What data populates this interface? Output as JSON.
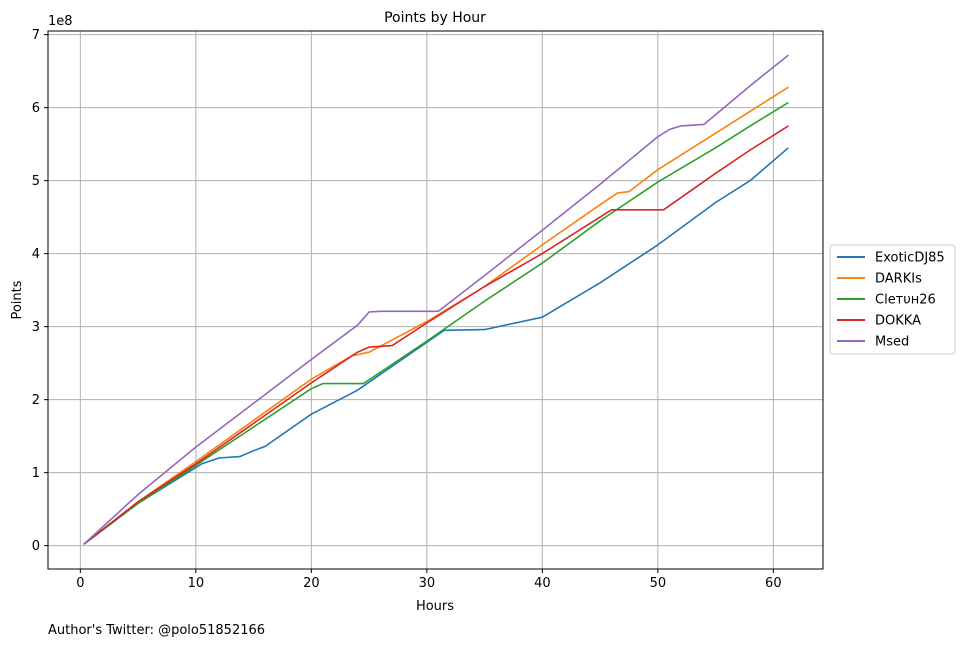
{
  "chart_data": {
    "type": "line",
    "title": "Points by Hour",
    "xlabel": "Hours",
    "ylabel": "Points",
    "y_offset_label": "1e8",
    "xlim": [
      -2.8,
      64.3
    ],
    "ylim": [
      -0.32,
      7.05
    ],
    "xticks": [
      0,
      10,
      20,
      30,
      40,
      50,
      60
    ],
    "yticks": [
      0,
      1,
      2,
      3,
      4,
      5,
      6,
      7
    ],
    "grid": true,
    "legend_position": "center-right-outside",
    "footnote": "Author's Twitter: @polo51852166",
    "series": [
      {
        "name": "ExoticDJ85",
        "color": "#1f77b4",
        "points": [
          [
            0.3,
            0.02
          ],
          [
            5,
            0.58
          ],
          [
            10.5,
            1.12
          ],
          [
            12,
            1.2
          ],
          [
            13.8,
            1.22
          ],
          [
            15,
            1.3
          ],
          [
            16,
            1.36
          ],
          [
            20,
            1.8
          ],
          [
            24,
            2.13
          ],
          [
            31.5,
            2.95
          ],
          [
            35,
            2.96
          ],
          [
            40,
            3.13
          ],
          [
            45,
            3.6
          ],
          [
            50,
            4.12
          ],
          [
            55,
            4.7
          ],
          [
            58,
            5.0
          ],
          [
            61.3,
            5.45
          ]
        ]
      },
      {
        "name": "DARKIs",
        "color": "#ff7f0e",
        "points": [
          [
            0.3,
            0.02
          ],
          [
            5,
            0.6
          ],
          [
            10,
            1.15
          ],
          [
            20,
            2.28
          ],
          [
            23.5,
            2.6
          ],
          [
            25,
            2.65
          ],
          [
            30,
            3.07
          ],
          [
            35,
            3.55
          ],
          [
            40,
            4.12
          ],
          [
            45,
            4.67
          ],
          [
            46.5,
            4.83
          ],
          [
            47.5,
            4.85
          ],
          [
            50,
            5.15
          ],
          [
            55,
            5.65
          ],
          [
            58,
            5.95
          ],
          [
            61.3,
            6.28
          ]
        ]
      },
      {
        "name": "Clетυн26",
        "color": "#2ca02c",
        "points": [
          [
            0.3,
            0.02
          ],
          [
            5,
            0.58
          ],
          [
            10,
            1.1
          ],
          [
            20,
            2.15
          ],
          [
            21,
            2.22
          ],
          [
            24.5,
            2.22
          ],
          [
            30,
            2.8
          ],
          [
            35,
            3.35
          ],
          [
            40,
            3.87
          ],
          [
            45,
            4.45
          ],
          [
            50,
            4.98
          ],
          [
            55,
            5.45
          ],
          [
            58,
            5.75
          ],
          [
            61.3,
            6.07
          ]
        ]
      },
      {
        "name": "DOKKA",
        "color": "#d62728",
        "points": [
          [
            0.3,
            0.02
          ],
          [
            5,
            0.6
          ],
          [
            10,
            1.12
          ],
          [
            20,
            2.23
          ],
          [
            24,
            2.65
          ],
          [
            25,
            2.72
          ],
          [
            27,
            2.74
          ],
          [
            30,
            3.05
          ],
          [
            35,
            3.55
          ],
          [
            40,
            4.0
          ],
          [
            45,
            4.5
          ],
          [
            46,
            4.6
          ],
          [
            50.5,
            4.6
          ],
          [
            55,
            5.1
          ],
          [
            58,
            5.42
          ],
          [
            61.3,
            5.75
          ]
        ]
      },
      {
        "name": "Msed",
        "color": "#9467bd",
        "points": [
          [
            0.3,
            0.02
          ],
          [
            5,
            0.7
          ],
          [
            10,
            1.35
          ],
          [
            20,
            2.55
          ],
          [
            24,
            3.02
          ],
          [
            25,
            3.2
          ],
          [
            26,
            3.21
          ],
          [
            31,
            3.21
          ],
          [
            35,
            3.7
          ],
          [
            40,
            4.32
          ],
          [
            45,
            4.95
          ],
          [
            50,
            5.6
          ],
          [
            51,
            5.7
          ],
          [
            52,
            5.75
          ],
          [
            54,
            5.77
          ],
          [
            58,
            6.3
          ],
          [
            61.3,
            6.72
          ]
        ]
      }
    ]
  }
}
